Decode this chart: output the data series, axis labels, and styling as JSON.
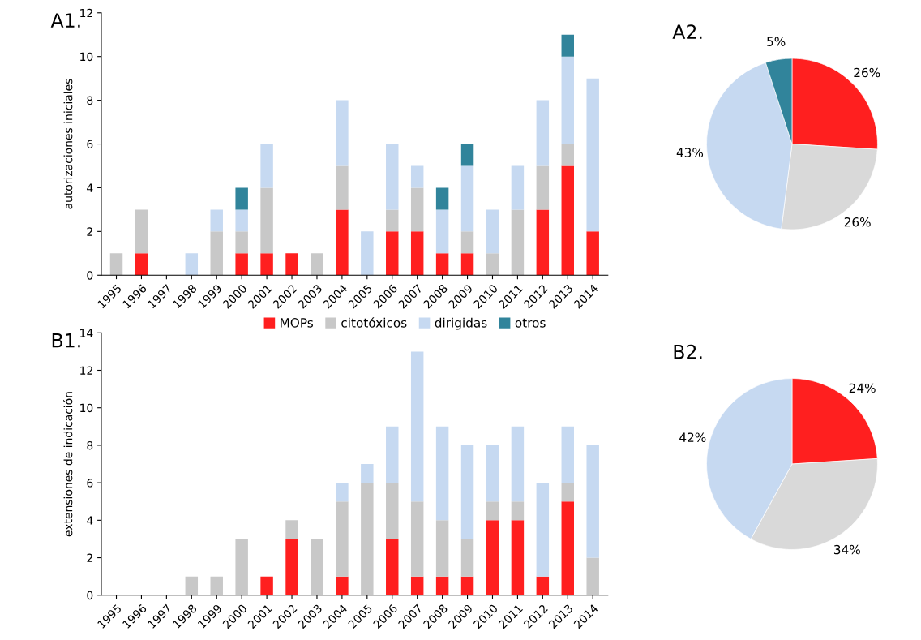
{
  "chart_data": [
    {
      "type": "bar",
      "title": "A1.",
      "ylabel": "autorizaciones iniciales",
      "stacked": true,
      "categories": [
        "1995",
        "1996",
        "1997",
        "1998",
        "1999",
        "2000",
        "2001",
        "2002",
        "2003",
        "2004",
        "2005",
        "2006",
        "2007",
        "2008",
        "2009",
        "2010",
        "2011",
        "2012",
        "2013",
        "2014"
      ],
      "ylim": [
        0,
        12
      ],
      "yticks": [
        0,
        2,
        4,
        6,
        8,
        10,
        12
      ],
      "grid": false,
      "legend": "bottom",
      "series": [
        {
          "name": "MOPs",
          "color": "#ff1f1f",
          "values": [
            0,
            1,
            0,
            0,
            0,
            1,
            1,
            1,
            0,
            3,
            0,
            2,
            2,
            1,
            1,
            0,
            0,
            3,
            5,
            2
          ]
        },
        {
          "name": "citotóxicos",
          "color": "#c8c8c8",
          "values": [
            1,
            2,
            0,
            0,
            2,
            1,
            3,
            0,
            1,
            2,
            0,
            1,
            2,
            0,
            1,
            1,
            3,
            2,
            1,
            0
          ]
        },
        {
          "name": "dirigidas",
          "color": "#c6d9f1",
          "values": [
            0,
            0,
            0,
            1,
            1,
            1,
            2,
            0,
            0,
            3,
            2,
            3,
            1,
            2,
            3,
            2,
            2,
            3,
            4,
            7
          ]
        },
        {
          "name": "otros",
          "color": "#31849b",
          "values": [
            0,
            0,
            0,
            0,
            0,
            1,
            0,
            0,
            0,
            0,
            0,
            0,
            0,
            1,
            1,
            0,
            0,
            0,
            1,
            0
          ]
        }
      ]
    },
    {
      "type": "pie",
      "title": "A2.",
      "categories": [
        null,
        null,
        null,
        null
      ],
      "values": [
        26,
        26,
        43,
        5
      ],
      "value_labels": [
        "26%",
        "26%",
        "43%",
        "5%"
      ],
      "colors": [
        "#ff1f1f",
        "#d9d9d9",
        "#c6d9f1",
        "#31849b"
      ],
      "legend": false
    },
    {
      "type": "bar",
      "title": "B1.",
      "ylabel": "extensiones de indicación",
      "stacked": true,
      "categories": [
        "1995",
        "1996",
        "1997",
        "1998",
        "1999",
        "2000",
        "2001",
        "2002",
        "2003",
        "2004",
        "2005",
        "2006",
        "2007",
        "2008",
        "2009",
        "2010",
        "2011",
        "2012",
        "2013",
        "2014"
      ],
      "ylim": [
        0,
        14
      ],
      "yticks": [
        0,
        2,
        4,
        6,
        8,
        10,
        12,
        14
      ],
      "grid": false,
      "series": [
        {
          "color": "#ff1f1f",
          "values": [
            0,
            0,
            0,
            0,
            0,
            0,
            1,
            3,
            0,
            1,
            0,
            3,
            1,
            1,
            1,
            4,
            4,
            1,
            5,
            0
          ]
        },
        {
          "color": "#c8c8c8",
          "values": [
            0,
            0,
            0,
            1,
            1,
            3,
            0,
            1,
            3,
            4,
            6,
            3,
            4,
            3,
            2,
            1,
            1,
            0,
            1,
            2
          ]
        },
        {
          "color": "#c6d9f1",
          "values": [
            0,
            0,
            0,
            0,
            0,
            0,
            0,
            0,
            0,
            1,
            1,
            3,
            8,
            5,
            5,
            3,
            4,
            5,
            3,
            6
          ]
        },
        {
          "color": "#31849b",
          "values": [
            0,
            0,
            0,
            0,
            0,
            0,
            0,
            0,
            0,
            0,
            0,
            0,
            0,
            0,
            0,
            0,
            0,
            0,
            0,
            0
          ]
        }
      ]
    },
    {
      "type": "pie",
      "title": "B2.",
      "categories": [
        null,
        null,
        null
      ],
      "values": [
        24,
        34,
        42
      ],
      "value_labels": [
        "24%",
        "34%",
        "42%"
      ],
      "colors": [
        "#ff1f1f",
        "#d9d9d9",
        "#c6d9f1"
      ],
      "legend": false
    }
  ]
}
